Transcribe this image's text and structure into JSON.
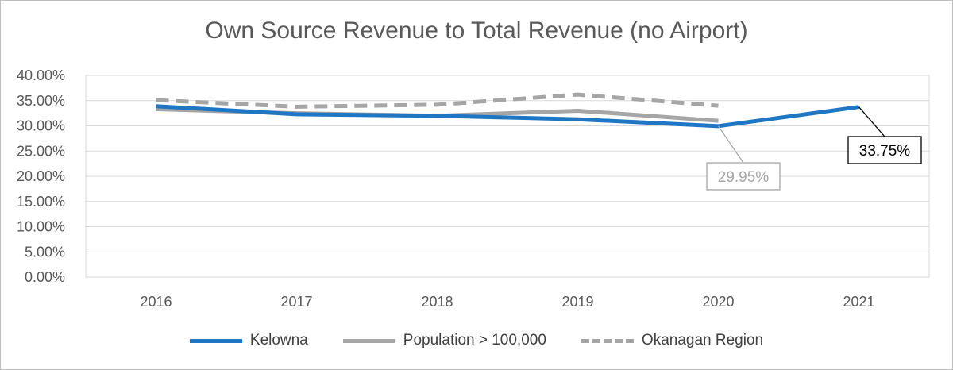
{
  "chart_data": {
    "type": "line",
    "title": "Own Source Revenue to Total Revenue (no Airport)",
    "xlabel": "",
    "ylabel": "",
    "categories": [
      "2016",
      "2017",
      "2018",
      "2019",
      "2020",
      "2021"
    ],
    "ylim": [
      0,
      40
    ],
    "y_ticks": [
      "0.00%",
      "5.00%",
      "10.00%",
      "15.00%",
      "20.00%",
      "25.00%",
      "30.00%",
      "35.00%",
      "40.00%"
    ],
    "grid": true,
    "legend_position": "bottom",
    "series": [
      {
        "name": "Kelowna",
        "values": [
          33.9,
          32.3,
          32.0,
          31.3,
          29.95,
          33.75
        ],
        "color": "#1f77c4",
        "style": "solid"
      },
      {
        "name": "Population > 100,000",
        "values": [
          33.3,
          32.5,
          32.0,
          33.0,
          31.0,
          null
        ],
        "color": "#a6a6a6",
        "style": "solid"
      },
      {
        "name": "Okanagan Region",
        "values": [
          35.1,
          33.8,
          34.2,
          36.2,
          34.0,
          null
        ],
        "color": "#a6a6a6",
        "style": "dashed"
      }
    ],
    "annotations": [
      {
        "text": "29.95%",
        "category": "2020",
        "series": "Kelowna",
        "color": "#a6a6a6"
      },
      {
        "text": "33.75%",
        "category": "2021",
        "series": "Kelowna",
        "color": "#000000"
      }
    ]
  }
}
